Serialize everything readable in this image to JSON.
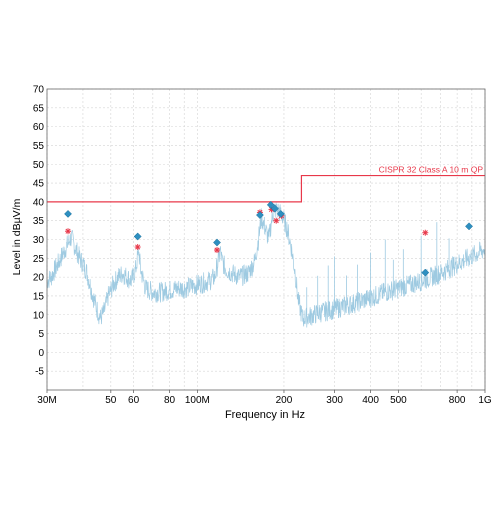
{
  "chart_data": {
    "type": "line",
    "xlabel": "Frequency in Hz",
    "ylabel": "Level in dBµV/m",
    "x_scale": "log",
    "xlim": [
      30000000,
      1000000000
    ],
    "ylim": [
      -10,
      70
    ],
    "grid": true,
    "x_ticks": [
      {
        "value": 30000000,
        "label": "30M"
      },
      {
        "value": 50000000,
        "label": "50"
      },
      {
        "value": 60000000,
        "label": "60"
      },
      {
        "value": 80000000,
        "label": "80"
      },
      {
        "value": 100000000,
        "label": "100M"
      },
      {
        "value": 200000000,
        "label": "200"
      },
      {
        "value": 300000000,
        "label": "300"
      },
      {
        "value": 400000000,
        "label": "400"
      },
      {
        "value": 500000000,
        "label": "500"
      },
      {
        "value": 800000000,
        "label": "800"
      },
      {
        "value": 1000000000,
        "label": "1G"
      }
    ],
    "y_ticks": [
      -5,
      0,
      5,
      10,
      15,
      20,
      25,
      30,
      35,
      40,
      45,
      50,
      55,
      60,
      65,
      70
    ],
    "y_tick_labels": [
      "-5",
      "0",
      "5",
      "10",
      "15",
      "20",
      "25",
      "30",
      "35",
      "40",
      "45",
      "50",
      "55",
      "60",
      "65",
      "70"
    ],
    "colors": {
      "limit": "#e8384a",
      "trace": "#9ecae1",
      "qp_marker": "#2e8fc0",
      "peak_marker": "#e8384a"
    },
    "limit": {
      "name": "CISPR 32 Class A 10 m QP",
      "points": [
        [
          30000000,
          40
        ],
        [
          230000000,
          40
        ],
        [
          230000000,
          47
        ],
        [
          1000000000,
          47
        ]
      ]
    },
    "trace": {
      "points": [
        [
          30000000,
          19
        ],
        [
          31000000,
          20
        ],
        [
          33000000,
          24
        ],
        [
          34500000,
          27
        ],
        [
          35500000,
          29
        ],
        [
          36500000,
          30.5
        ],
        [
          37500000,
          28
        ],
        [
          39000000,
          25
        ],
        [
          41000000,
          22
        ],
        [
          43000000,
          16
        ],
        [
          44500000,
          12
        ],
        [
          46000000,
          9
        ],
        [
          47500000,
          11
        ],
        [
          49000000,
          15
        ],
        [
          51000000,
          18
        ],
        [
          53000000,
          20
        ],
        [
          55000000,
          21
        ],
        [
          57000000,
          20
        ],
        [
          59000000,
          19
        ],
        [
          61000000,
          22
        ],
        [
          62500000,
          27
        ],
        [
          63500000,
          22
        ],
        [
          66000000,
          17
        ],
        [
          70000000,
          16
        ],
        [
          75000000,
          16
        ],
        [
          80000000,
          16.5
        ],
        [
          85000000,
          17
        ],
        [
          90000000,
          17
        ],
        [
          95000000,
          17.5
        ],
        [
          100000000,
          18
        ],
        [
          105000000,
          18.5
        ],
        [
          110000000,
          19
        ],
        [
          115000000,
          20
        ],
        [
          118000000,
          24
        ],
        [
          120000000,
          27
        ],
        [
          122000000,
          24
        ],
        [
          126000000,
          22
        ],
        [
          132000000,
          21
        ],
        [
          140000000,
          20
        ],
        [
          150000000,
          21
        ],
        [
          158000000,
          24
        ],
        [
          163000000,
          30
        ],
        [
          167000000,
          36
        ],
        [
          172000000,
          33
        ],
        [
          177000000,
          30
        ],
        [
          182000000,
          36
        ],
        [
          186000000,
          38
        ],
        [
          192000000,
          37.5
        ],
        [
          198000000,
          36
        ],
        [
          205000000,
          33
        ],
        [
          212000000,
          28
        ],
        [
          218000000,
          22
        ],
        [
          224000000,
          14
        ],
        [
          232000000,
          9
        ],
        [
          245000000,
          9.5
        ],
        [
          265000000,
          10.5
        ],
        [
          300000000,
          11.5
        ],
        [
          350000000,
          13
        ],
        [
          400000000,
          14.5
        ],
        [
          450000000,
          16
        ],
        [
          500000000,
          17
        ],
        [
          550000000,
          18
        ],
        [
          600000000,
          19
        ],
        [
          650000000,
          20
        ],
        [
          700000000,
          21
        ],
        [
          800000000,
          23.5
        ],
        [
          900000000,
          25.5
        ],
        [
          1000000000,
          27.5
        ]
      ]
    },
    "qp_markers": [
      [
        35500000,
        36.8
      ],
      [
        62000000,
        30.8
      ],
      [
        117000000,
        29.2
      ],
      [
        165000000,
        36.5
      ],
      [
        180000000,
        39.2
      ],
      [
        186000000,
        38.2
      ],
      [
        195000000,
        36.8
      ],
      [
        620000000,
        21.2
      ],
      [
        880000000,
        33.5
      ]
    ],
    "peak_markers": [
      [
        35500000,
        32.2
      ],
      [
        62000000,
        28.0
      ],
      [
        117000000,
        27.2
      ],
      [
        165000000,
        37.2
      ],
      [
        181000000,
        38.0
      ],
      [
        188000000,
        35.0
      ],
      [
        196000000,
        36.3
      ],
      [
        620000000,
        31.8
      ]
    ]
  }
}
